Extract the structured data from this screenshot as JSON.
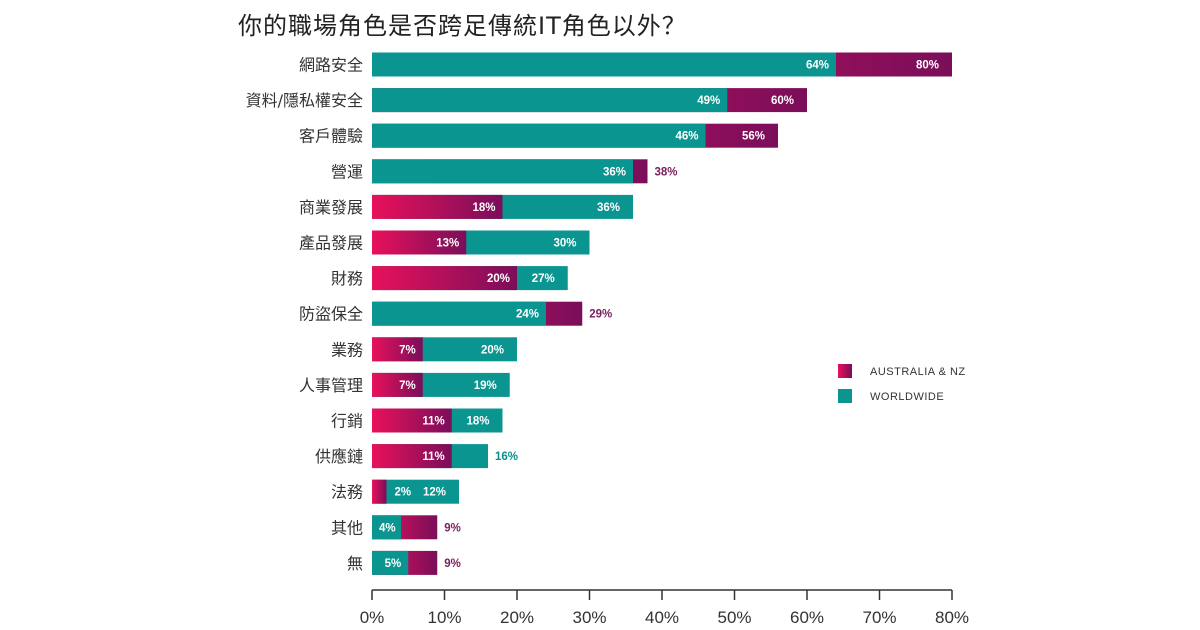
{
  "colors": {
    "worldwide": "#0b9590",
    "australia_nz": "#e8115b",
    "australia_nz_gradient_end": "#7a0e5a",
    "axis": "#333333",
    "label_dark": "#333333",
    "outside_label_purple": "#7a1f5e",
    "outside_label_teal": "#0b8f8a"
  },
  "chart_data": {
    "type": "bar",
    "orientation": "horizontal",
    "stacking": "overlay",
    "title": "你的職場角色是否跨足傳統IT角色以外？",
    "categories": [
      "網路安全",
      "資料/隱私權安全",
      "客戶體驗",
      "營運",
      "商業發展",
      "產品發展",
      "財務",
      "防盜保全",
      "業務",
      "人事管理",
      "行銷",
      "供應鏈",
      "法務",
      "其他",
      "無"
    ],
    "series": [
      {
        "name": "AUSTRALIA & NZ",
        "values": [
          80,
          60,
          56,
          38,
          18,
          13,
          20,
          29,
          7,
          7,
          11,
          11,
          2,
          9,
          9
        ]
      },
      {
        "name": "WORLDWIDE",
        "values": [
          64,
          49,
          46,
          36,
          36,
          30,
          27,
          24,
          20,
          19,
          18,
          16,
          12,
          4,
          5
        ]
      }
    ],
    "value_labels": {
      "AUSTRALIA & NZ": [
        "80%",
        "60%",
        "56%",
        "38%",
        "18%",
        "13%",
        "20%",
        "29%",
        "7%",
        "7%",
        "11%",
        "11%",
        "",
        "9%",
        "9%"
      ],
      "WORLDWIDE": [
        "64%",
        "49%",
        "46%",
        "36%",
        "36%",
        "30%",
        "27%",
        "24%",
        "20%",
        "19%",
        "18%",
        "16%",
        "12%",
        "4%",
        "5%"
      ]
    },
    "extra_label": {
      "category_index": 12,
      "text": "2%"
    },
    "xlim": [
      0,
      80
    ],
    "xticks": [
      0,
      10,
      20,
      30,
      40,
      50,
      60,
      70,
      80
    ],
    "xtick_labels": [
      "0%",
      "10%",
      "20%",
      "30%",
      "40%",
      "50%",
      "60%",
      "70%",
      "80%"
    ],
    "grid": false,
    "legend_position": "right",
    "legend": [
      {
        "label": "AUSTRALIA & NZ",
        "series": "AUSTRALIA & NZ"
      },
      {
        "label": "WORLDWIDE",
        "series": "WORLDWIDE"
      }
    ]
  }
}
